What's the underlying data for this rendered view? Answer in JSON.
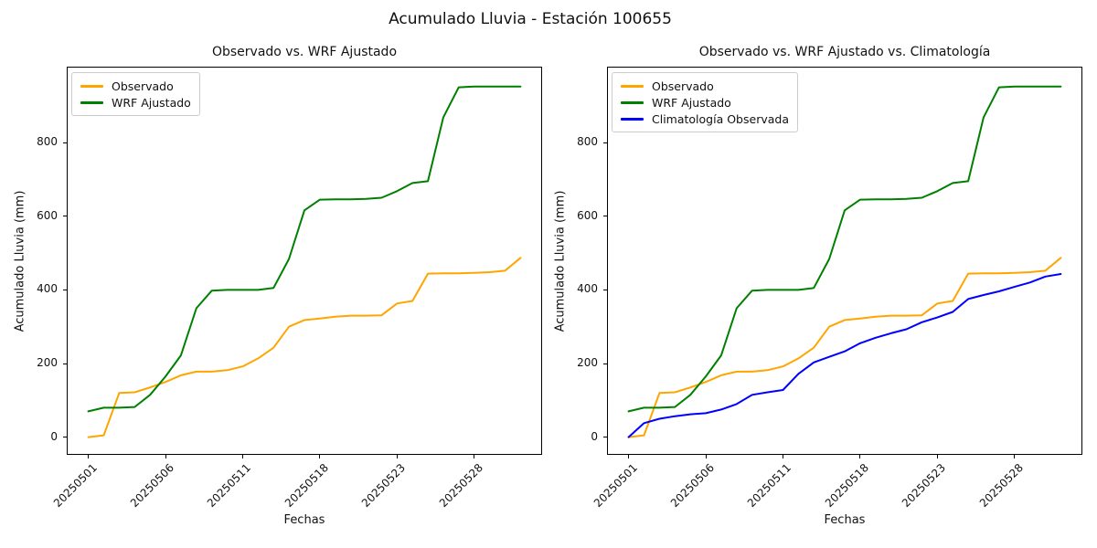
{
  "figure": {
    "title": "Acumulado Lluvia - Estación 100655",
    "background": "#ffffff",
    "text_color": "#111111"
  },
  "colors": {
    "observado": "#FFA500",
    "wrf_ajustado": "#008000",
    "climatologia": "#0000FF",
    "legend_border": "#cccccc",
    "spine": "#000000"
  },
  "chart_data": [
    {
      "type": "line",
      "title": "Observado vs. WRF Ajustado",
      "xlabel": "Fechas",
      "ylabel": "Acumulado Lluvia (mm)",
      "x_tick_labels": [
        "20250501",
        "20250506",
        "20250511",
        "20250518",
        "20250523",
        "20250528"
      ],
      "x_tick_indices": [
        0,
        5,
        10,
        15,
        20,
        25
      ],
      "y_ticks": [
        0,
        200,
        400,
        600,
        800
      ],
      "xlim": [
        -1.4,
        29.4
      ],
      "ylim": [
        -48,
        1006
      ],
      "n_points": 29,
      "grid": false,
      "legend_position": "upper-left",
      "series": [
        {
          "name": "Observado",
          "color": "#FFA500",
          "values": [
            0,
            5,
            120,
            122,
            135,
            150,
            168,
            178,
            178,
            182,
            192,
            214,
            243,
            300,
            318,
            322,
            327,
            330,
            330,
            331,
            363,
            370,
            444,
            445,
            445,
            446,
            448,
            452,
            487
          ]
        },
        {
          "name": "WRF Ajustado",
          "color": "#008000",
          "values": [
            70,
            80,
            80,
            82,
            115,
            165,
            222,
            350,
            398,
            400,
            400,
            400,
            405,
            484,
            616,
            645,
            646,
            646,
            647,
            650,
            668,
            690,
            695,
            868,
            950,
            952,
            952,
            952,
            952
          ]
        }
      ]
    },
    {
      "type": "line",
      "title": "Observado vs. WRF Ajustado vs. Climatología",
      "xlabel": "Fechas",
      "ylabel": "Acumulado Lluvia (mm)",
      "x_tick_labels": [
        "20250501",
        "20250506",
        "20250511",
        "20250518",
        "20250523",
        "20250528"
      ],
      "x_tick_indices": [
        0,
        5,
        10,
        15,
        20,
        25
      ],
      "y_ticks": [
        0,
        200,
        400,
        600,
        800
      ],
      "xlim": [
        -1.4,
        29.4
      ],
      "ylim": [
        -48,
        1006
      ],
      "n_points": 29,
      "grid": false,
      "legend_position": "upper-left",
      "series": [
        {
          "name": "Observado",
          "color": "#FFA500",
          "values": [
            0,
            5,
            120,
            122,
            135,
            150,
            168,
            178,
            178,
            182,
            192,
            214,
            243,
            300,
            318,
            322,
            327,
            330,
            330,
            331,
            363,
            370,
            444,
            445,
            445,
            446,
            448,
            452,
            487
          ]
        },
        {
          "name": "WRF Ajustado",
          "color": "#008000",
          "values": [
            70,
            80,
            80,
            82,
            115,
            165,
            222,
            350,
            398,
            400,
            400,
            400,
            405,
            484,
            616,
            645,
            646,
            646,
            647,
            650,
            668,
            690,
            695,
            868,
            950,
            952,
            952,
            952,
            952
          ]
        },
        {
          "name": "Climatología Observada",
          "color": "#0000FF",
          "values": [
            0,
            38,
            50,
            57,
            62,
            65,
            75,
            90,
            115,
            122,
            128,
            172,
            203,
            218,
            233,
            255,
            270,
            282,
            293,
            312,
            325,
            340,
            375,
            386,
            396,
            408,
            420,
            436,
            443
          ]
        }
      ]
    }
  ]
}
